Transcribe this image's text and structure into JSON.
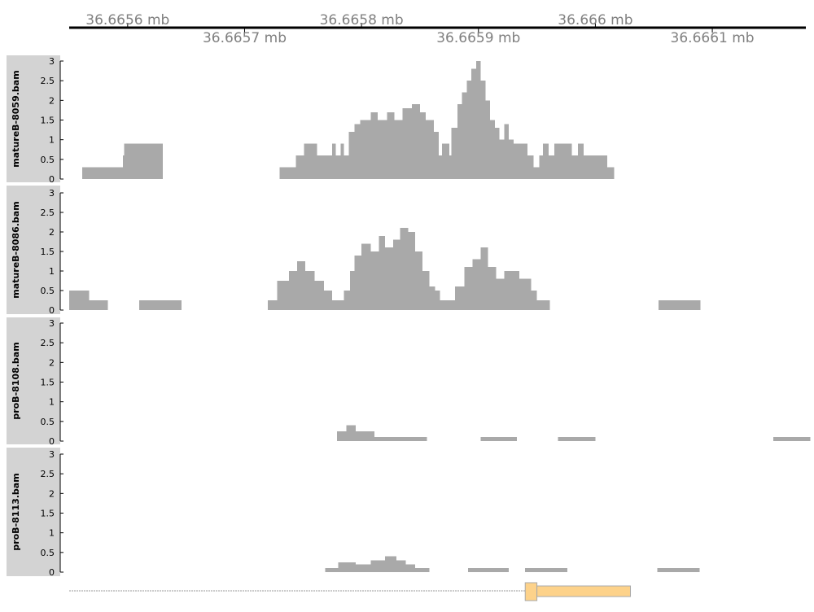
{
  "chart_data": {
    "type": "area",
    "genome_axis": {
      "ticks": [
        {
          "label": "36.6656 mb",
          "x": 36.6656,
          "row": 0
        },
        {
          "label": "36.6657 mb",
          "x": 36.6657,
          "row": 1
        },
        {
          "label": "36.6658 mb",
          "x": 36.6658,
          "row": 0
        },
        {
          "label": "36.6659 mb",
          "x": 36.6659,
          "row": 1
        },
        {
          "label": "36.666 mb",
          "x": 36.666,
          "row": 0
        },
        {
          "label": "36.6661 mb",
          "x": 36.6661,
          "row": 1
        }
      ],
      "xlim": [
        36.66555,
        36.66618
      ]
    },
    "ylim": [
      0,
      3
    ],
    "yticks": [
      "0",
      "0.5",
      "1",
      "1.5",
      "2",
      "2.5",
      "3"
    ],
    "colors": {
      "coverage": "#a9a9a9",
      "panel": "#d3d3d3",
      "axis": "#000000",
      "gene": "#fdd28a",
      "gene_border": "#a9a9a9"
    },
    "tracks": [
      {
        "name": "matureB-8059.bam",
        "steps": [
          [
            36.665561,
            36.665596,
            0.3
          ],
          [
            36.665596,
            36.665597,
            0.6
          ],
          [
            36.665597,
            36.665598,
            0.9
          ],
          [
            36.665598,
            36.66563,
            0.9
          ],
          [
            36.66573,
            36.665744,
            0.3
          ],
          [
            36.665744,
            36.665751,
            0.6
          ],
          [
            36.665751,
            36.665762,
            0.9
          ],
          [
            36.665762,
            36.665775,
            0.6
          ],
          [
            36.665775,
            36.665778,
            0.9
          ],
          [
            36.665778,
            36.665782,
            0.6
          ],
          [
            36.665782,
            36.665785,
            0.9
          ],
          [
            36.665785,
            36.665789,
            0.6
          ],
          [
            36.665789,
            36.665794,
            1.2
          ],
          [
            36.665794,
            36.665799,
            1.4
          ],
          [
            36.665799,
            36.665808,
            1.5
          ],
          [
            36.665808,
            36.665814,
            1.7
          ],
          [
            36.665814,
            36.665822,
            1.5
          ],
          [
            36.665822,
            36.665828,
            1.7
          ],
          [
            36.665828,
            36.665835,
            1.5
          ],
          [
            36.665835,
            36.665843,
            1.8
          ],
          [
            36.665843,
            36.66585,
            1.9
          ],
          [
            36.66585,
            36.665855,
            1.7
          ],
          [
            36.665855,
            36.665862,
            1.5
          ],
          [
            36.665862,
            36.665866,
            1.2
          ],
          [
            36.665866,
            36.665869,
            0.6
          ],
          [
            36.665869,
            36.665875,
            0.9
          ],
          [
            36.665875,
            36.665877,
            0.6
          ],
          [
            36.665877,
            36.665882,
            1.3
          ],
          [
            36.665882,
            36.665886,
            1.9
          ],
          [
            36.665886,
            36.66589,
            2.2
          ],
          [
            36.66589,
            36.665894,
            2.5
          ],
          [
            36.665894,
            36.665898,
            2.8
          ],
          [
            36.665898,
            36.665902,
            3.0
          ],
          [
            36.665902,
            36.665906,
            2.5
          ],
          [
            36.665906,
            36.66591,
            2.0
          ],
          [
            36.66591,
            36.665914,
            1.5
          ],
          [
            36.665914,
            36.665918,
            1.3
          ],
          [
            36.665918,
            36.665922,
            1.0
          ],
          [
            36.665922,
            36.665926,
            1.4
          ],
          [
            36.665926,
            36.66593,
            1.0
          ],
          [
            36.66593,
            36.665942,
            0.9
          ],
          [
            36.665942,
            36.665947,
            0.6
          ],
          [
            36.665947,
            36.665952,
            0.3
          ],
          [
            36.665952,
            36.665955,
            0.6
          ],
          [
            36.665955,
            36.66596,
            0.9
          ],
          [
            36.66596,
            36.665965,
            0.6
          ],
          [
            36.665965,
            36.665972,
            0.9
          ],
          [
            36.665972,
            36.66598,
            0.9
          ],
          [
            36.66598,
            36.665985,
            0.6
          ],
          [
            36.665985,
            36.66599,
            0.9
          ],
          [
            36.66599,
            36.665997,
            0.6
          ],
          [
            36.665997,
            36.66601,
            0.6
          ],
          [
            36.66601,
            36.666016,
            0.3
          ]
        ]
      },
      {
        "name": "matureB-8086.bam",
        "steps": [
          [
            36.66555,
            36.665567,
            0.5
          ],
          [
            36.665567,
            36.665583,
            0.25
          ],
          [
            36.66561,
            36.665646,
            0.25
          ],
          [
            36.66572,
            36.665728,
            0.25
          ],
          [
            36.665728,
            36.665738,
            0.75
          ],
          [
            36.665738,
            36.665745,
            1.0
          ],
          [
            36.665745,
            36.665752,
            1.25
          ],
          [
            36.665752,
            36.66576,
            1.0
          ],
          [
            36.66576,
            36.665768,
            0.75
          ],
          [
            36.665768,
            36.665775,
            0.5
          ],
          [
            36.665775,
            36.665785,
            0.25
          ],
          [
            36.665785,
            36.66579,
            0.5
          ],
          [
            36.66579,
            36.665794,
            1.0
          ],
          [
            36.665794,
            36.6658,
            1.4
          ],
          [
            36.6658,
            36.665808,
            1.7
          ],
          [
            36.665808,
            36.665815,
            1.5
          ],
          [
            36.665815,
            36.66582,
            1.9
          ],
          [
            36.66582,
            36.665827,
            1.6
          ],
          [
            36.665827,
            36.665833,
            1.8
          ],
          [
            36.665833,
            36.66584,
            2.1
          ],
          [
            36.66584,
            36.665846,
            2.0
          ],
          [
            36.665846,
            36.665852,
            1.5
          ],
          [
            36.665852,
            36.665858,
            1.0
          ],
          [
            36.665858,
            36.665863,
            0.6
          ],
          [
            36.665863,
            36.665867,
            0.5
          ],
          [
            36.665867,
            36.66588,
            0.25
          ],
          [
            36.66588,
            36.665888,
            0.6
          ],
          [
            36.665888,
            36.665895,
            1.1
          ],
          [
            36.665895,
            36.665902,
            1.3
          ],
          [
            36.665902,
            36.665908,
            1.6
          ],
          [
            36.665908,
            36.665915,
            1.1
          ],
          [
            36.665915,
            36.665922,
            0.8
          ],
          [
            36.665922,
            36.665935,
            1.0
          ],
          [
            36.665935,
            36.665945,
            0.8
          ],
          [
            36.665945,
            36.66595,
            0.5
          ],
          [
            36.66595,
            36.665961,
            0.25
          ],
          [
            36.666054,
            36.66609,
            0.25
          ]
        ]
      },
      {
        "name": "proB-8108.bam",
        "steps": [
          [
            36.665779,
            36.665787,
            0.25
          ],
          [
            36.665787,
            36.665795,
            0.4
          ],
          [
            36.665795,
            36.665805,
            0.25
          ],
          [
            36.665805,
            36.665808,
            0.25
          ],
          [
            36.665808,
            36.665811,
            0.25
          ],
          [
            36.665811,
            36.665856,
            0.1
          ],
          [
            36.665902,
            36.665933,
            0.1
          ],
          [
            36.665968,
            36.666,
            0.1
          ],
          [
            36.666152,
            36.666184,
            0.1
          ]
        ]
      },
      {
        "name": "proB-8113.bam",
        "steps": [
          [
            36.665769,
            36.66578,
            0.1
          ],
          [
            36.66578,
            36.665795,
            0.25
          ],
          [
            36.665795,
            36.665808,
            0.2
          ],
          [
            36.665808,
            36.66582,
            0.3
          ],
          [
            36.66582,
            36.66583,
            0.4
          ],
          [
            36.66583,
            36.665838,
            0.3
          ],
          [
            36.665838,
            36.665846,
            0.2
          ],
          [
            36.665846,
            36.665858,
            0.1
          ],
          [
            36.665891,
            36.665926,
            0.1
          ],
          [
            36.66594,
            36.665976,
            0.1
          ],
          [
            36.666053,
            36.666089,
            0.1
          ]
        ]
      }
    ],
    "gene_track": {
      "intron": [
        36.66555,
        36.66594
      ],
      "exon_narrow": [
        36.66594,
        36.66595
      ],
      "exon_wide": [
        36.66595,
        36.66603
      ]
    }
  }
}
